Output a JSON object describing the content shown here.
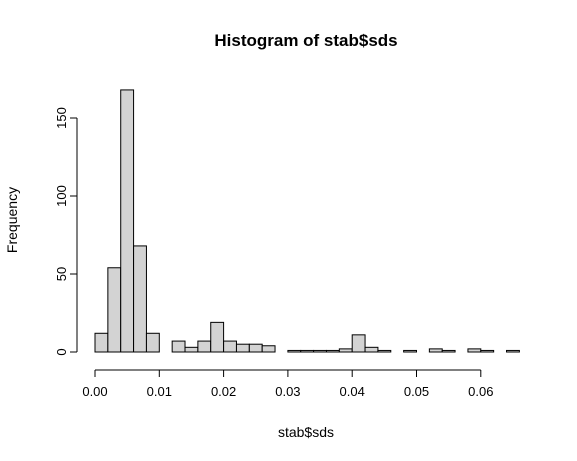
{
  "chart_data": {
    "type": "bar",
    "title": "Histogram of stab$sds",
    "xlabel": "stab$sds",
    "ylabel": "Frequency",
    "bin_start": 0,
    "bin_width": 0.002,
    "values": [
      12,
      54,
      168,
      68,
      12,
      0,
      7,
      3,
      7,
      19,
      7,
      5,
      5,
      4,
      0,
      1,
      1,
      1,
      1,
      2,
      11,
      3,
      1,
      0,
      1,
      0,
      2,
      1,
      0,
      2,
      1,
      0,
      1
    ],
    "xlim": [
      0,
      0.066
    ],
    "ylim": [
      0,
      168
    ],
    "x_ticks": [
      "0.00",
      "0.01",
      "0.02",
      "0.03",
      "0.04",
      "0.05",
      "0.06"
    ],
    "y_ticks": [
      "0",
      "50",
      "100",
      "150"
    ],
    "bar_fill": "#d3d3d3",
    "bar_stroke": "#000000",
    "grid": false
  }
}
